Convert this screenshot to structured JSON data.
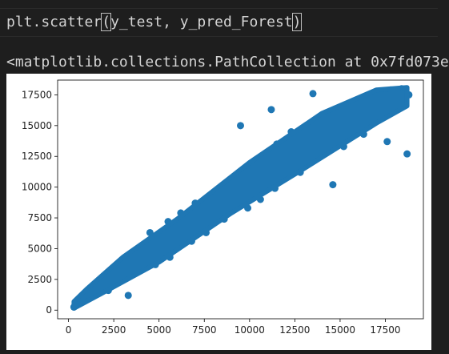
{
  "cell": {
    "code_prefix": "plt.scatter",
    "paren_open": "(",
    "code_args": "y_test, y_pred_Forest",
    "paren_close": ")",
    "output_repr": "<matplotlib.collections.PathCollection at 0x7fd073e"
  },
  "chart_data": {
    "type": "scatter",
    "title": "",
    "xlabel": "",
    "ylabel": "",
    "xlim": [
      -600,
      19600
    ],
    "ylim": [
      -700,
      18700
    ],
    "xticks": [
      0,
      2500,
      5000,
      7500,
      10000,
      12500,
      15000,
      17500
    ],
    "yticks": [
      0,
      2500,
      5000,
      7500,
      10000,
      12500,
      15000,
      17500
    ],
    "xtick_labels": [
      "0",
      "2500",
      "5000",
      "7500",
      "10000",
      "12500",
      "15000",
      "17500"
    ],
    "ytick_labels": [
      "0",
      "2500",
      "5000",
      "7500",
      "10000",
      "12500",
      "15000",
      "17500"
    ],
    "marker_color": "#1f77b4",
    "grid": false,
    "series": [
      {
        "x": [
          300,
          450,
          600,
          800,
          1000,
          1200,
          1500,
          1800,
          2100,
          2400,
          2700,
          3000,
          3300,
          3600,
          3900,
          4200,
          4500,
          4800,
          5100,
          5400,
          5700,
          6000,
          6300,
          6600,
          6900,
          7200,
          7500,
          7800,
          8100,
          8400,
          8700,
          9000,
          9300,
          9600,
          9900,
          10200,
          10500,
          10800,
          11100,
          11400,
          11700,
          12000,
          12300,
          12600,
          12900,
          13200,
          13500,
          13800,
          14100,
          14400,
          14700,
          15000,
          15300,
          15600,
          15900,
          16200,
          16500,
          16800,
          17100,
          17400,
          17700,
          18000,
          18300,
          18600,
          18800,
          500,
          700,
          900,
          1100,
          1400,
          1700,
          2000,
          2300,
          2600,
          2900,
          3200,
          3500,
          3800,
          4100,
          4400,
          4700,
          5000,
          5300,
          5600,
          5900,
          6200,
          6500,
          6800,
          7100,
          7400,
          7700,
          8000,
          8300,
          8600,
          8900,
          9200,
          9500,
          9800,
          10100,
          10400,
          10700,
          11000,
          11300,
          11600,
          11900,
          12200,
          12500,
          12800,
          13100,
          13400,
          13700,
          14000,
          14300,
          14600,
          14900,
          15200,
          15500,
          15800,
          16100,
          16400,
          16700,
          17000,
          17300,
          17600,
          17900,
          18200,
          18500,
          3300,
          3500,
          4000,
          4500,
          5500,
          6200,
          7000,
          8000,
          8800,
          9700,
          10300,
          11000,
          11800,
          12400,
          13000,
          13600,
          14200,
          14800,
          15400,
          16000,
          16600,
          17200,
          17800,
          18400,
          9500,
          10200,
          11200,
          11500,
          12300,
          13500,
          14600,
          15500,
          16800,
          17600,
          2200,
          3000,
          4800,
          5600,
          6800,
          7600,
          8600,
          9900,
          10600,
          11400,
          12800,
          15200,
          16300,
          17400,
          18700
        ],
        "y": [
          250,
          400,
          550,
          700,
          900,
          1100,
          1400,
          1700,
          1950,
          2250,
          2500,
          2800,
          3100,
          3350,
          3650,
          3950,
          4200,
          4500,
          4800,
          5050,
          5350,
          5650,
          5950,
          6200,
          6500,
          6800,
          7050,
          7350,
          7650,
          7900,
          8200,
          8500,
          8800,
          9050,
          9350,
          9650,
          9900,
          10200,
          10500,
          10800,
          11050,
          11350,
          11650,
          11900,
          12200,
          12500,
          12800,
          13050,
          13350,
          13650,
          13900,
          14200,
          14500,
          14750,
          15050,
          15350,
          15600,
          15900,
          16200,
          16500,
          16700,
          17000,
          17200,
          17400,
          17500,
          600,
          800,
          1000,
          1250,
          1550,
          1850,
          2150,
          2450,
          2750,
          3050,
          3350,
          3650,
          3950,
          4250,
          4550,
          4850,
          5150,
          5450,
          5750,
          6050,
          6350,
          6650,
          6950,
          7250,
          7550,
          7850,
          8150,
          8450,
          8750,
          9050,
          9350,
          9650,
          9950,
          10250,
          10550,
          10850,
          11150,
          11450,
          11750,
          12050,
          12350,
          12650,
          12950,
          13250,
          13550,
          13850,
          14150,
          14450,
          14750,
          15050,
          15350,
          15650,
          15950,
          16250,
          16550,
          16850,
          17100,
          17300,
          17500,
          17600,
          17700,
          17800,
          1200,
          4500,
          5200,
          6300,
          7200,
          7900,
          8700,
          9200,
          10000,
          10900,
          11700,
          12300,
          13100,
          13700,
          14400,
          14900,
          15600,
          16100,
          16600,
          16900,
          17300,
          17700,
          17900,
          18000,
          15000,
          12000,
          16300,
          13500,
          14500,
          17600,
          10200,
          16500,
          15200,
          13700,
          1600,
          2600,
          3700,
          4300,
          5600,
          6300,
          7400,
          8300,
          9000,
          9900,
          11200,
          13300,
          14300,
          15700,
          12700
        ]
      }
    ]
  }
}
